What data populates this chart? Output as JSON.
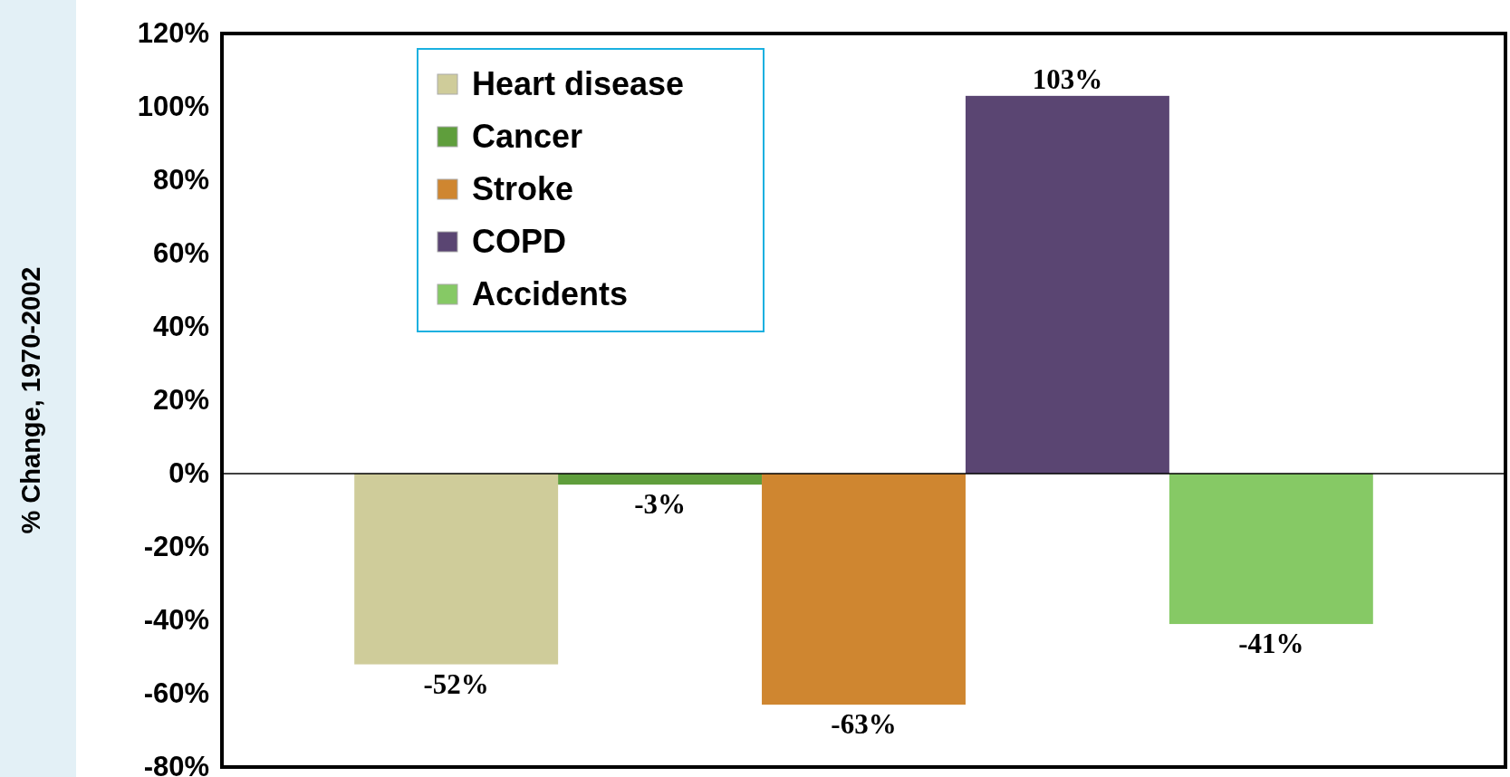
{
  "chart_data": {
    "type": "bar",
    "ylabel": "% Change, 1970-2002",
    "categories": [
      null
    ],
    "series": [
      {
        "name": "Heart disease",
        "color": "#cfcc9a",
        "values": [
          -52
        ],
        "value_labels": [
          "-52%"
        ]
      },
      {
        "name": "Cancer",
        "color": "#5f9e3c",
        "values": [
          -3
        ],
        "value_labels": [
          "-3%"
        ]
      },
      {
        "name": "Stroke",
        "color": "#cf8630",
        "values": [
          -63
        ],
        "value_labels": [
          "-63%"
        ]
      },
      {
        "name": "COPD",
        "color": "#5a4572",
        "values": [
          103
        ],
        "value_labels": [
          "103%"
        ]
      },
      {
        "name": "Accidents",
        "color": "#86c965",
        "values": [
          -41
        ],
        "value_labels": [
          "-41%"
        ]
      }
    ],
    "ylim": [
      -80,
      120
    ],
    "yticks": [
      {
        "value": -80,
        "label": "-80%"
      },
      {
        "value": -60,
        "label": "-60%"
      },
      {
        "value": -40,
        "label": "-40%"
      },
      {
        "value": -20,
        "label": "-20%"
      },
      {
        "value": 0,
        "label": "0%"
      },
      {
        "value": 20,
        "label": "20%"
      },
      {
        "value": 40,
        "label": "40%"
      },
      {
        "value": 60,
        "label": "60%"
      },
      {
        "value": 80,
        "label": "80%"
      },
      {
        "value": 100,
        "label": "100%"
      },
      {
        "value": 120,
        "label": "120%"
      }
    ],
    "legend": "top left"
  }
}
